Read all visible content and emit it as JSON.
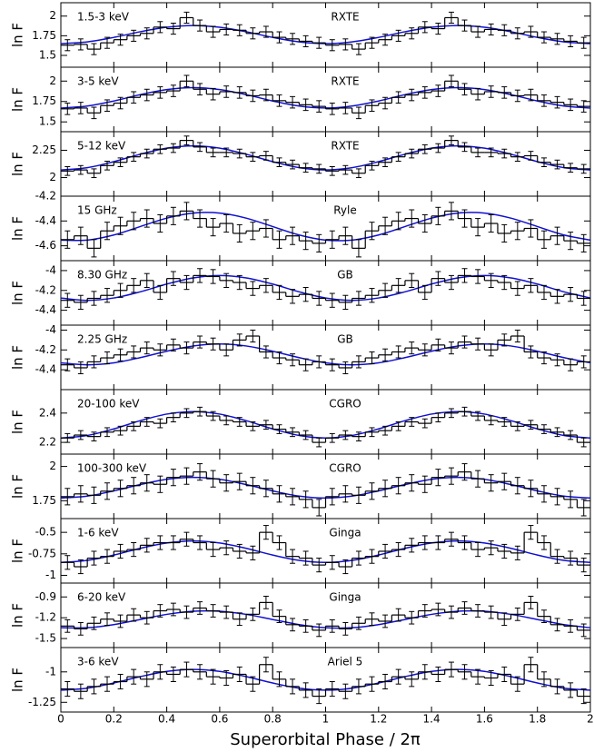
{
  "chart_data": {
    "type": "stacked-step",
    "xlabel": "Superorbital Phase / 2π",
    "xlim": [
      0,
      2
    ],
    "xticks": [
      0,
      0.2,
      0.4,
      0.6,
      0.8,
      1,
      1.2,
      1.4,
      1.6,
      1.8,
      2
    ],
    "bins": [
      0,
      0.05,
      0.1,
      0.15,
      0.2,
      0.25,
      0.3,
      0.35,
      0.4,
      0.45,
      0.5,
      0.55,
      0.6,
      0.65,
      0.7,
      0.75,
      0.8,
      0.85,
      0.9,
      0.95,
      1,
      1.05,
      1.1,
      1.15,
      1.2,
      1.25,
      1.3,
      1.35,
      1.4,
      1.45,
      1.5,
      1.55,
      1.6,
      1.65,
      1.7,
      1.75,
      1.8,
      1.85,
      1.9,
      1.95,
      2
    ],
    "fit_x": [
      0,
      0.1,
      0.2,
      0.3,
      0.4,
      0.5,
      0.6,
      0.7,
      0.8,
      0.9,
      1,
      1.1,
      1.2,
      1.3,
      1.4,
      1.5,
      1.6,
      1.7,
      1.8,
      1.9,
      2
    ],
    "data_color": "#000000",
    "fit_color": "#1010d0",
    "panels": [
      {
        "ylabel": "ln F",
        "label": "1.5-3 keV",
        "instrument": "RXTE",
        "ylim": [
          1.35,
          2.17
        ],
        "yticks": [
          1.5,
          1.75,
          2
        ],
        "error": 0.07,
        "values": [
          1.63,
          1.64,
          1.58,
          1.66,
          1.7,
          1.75,
          1.78,
          1.86,
          1.84,
          1.98,
          1.88,
          1.8,
          1.83,
          1.82,
          1.78,
          1.8,
          1.73,
          1.71,
          1.68,
          1.66,
          1.63,
          1.64,
          1.58,
          1.66,
          1.7,
          1.75,
          1.78,
          1.86,
          1.84,
          1.98,
          1.88,
          1.8,
          1.83,
          1.82,
          1.78,
          1.8,
          1.73,
          1.71,
          1.68,
          1.66
        ],
        "fit": [
          1.65,
          1.672,
          1.729,
          1.801,
          1.858,
          1.88,
          1.858,
          1.801,
          1.729,
          1.672,
          1.65,
          1.672,
          1.729,
          1.801,
          1.858,
          1.88,
          1.858,
          1.801,
          1.729,
          1.672,
          1.65
        ]
      },
      {
        "ylabel": "ln F",
        "label": "3-5 keV",
        "instrument": "RXTE",
        "ylim": [
          1.38,
          2.17
        ],
        "yticks": [
          1.5,
          1.75,
          2
        ],
        "error": 0.07,
        "values": [
          1.66,
          1.67,
          1.61,
          1.7,
          1.73,
          1.8,
          1.83,
          1.86,
          1.88,
          2.0,
          1.9,
          1.84,
          1.87,
          1.86,
          1.82,
          1.83,
          1.76,
          1.74,
          1.71,
          1.69,
          1.66,
          1.67,
          1.61,
          1.7,
          1.73,
          1.8,
          1.83,
          1.86,
          1.88,
          2.0,
          1.9,
          1.84,
          1.87,
          1.86,
          1.82,
          1.83,
          1.76,
          1.74,
          1.71,
          1.69
        ],
        "fit": [
          1.67,
          1.694,
          1.756,
          1.834,
          1.896,
          1.92,
          1.896,
          1.834,
          1.756,
          1.694,
          1.67,
          1.694,
          1.756,
          1.834,
          1.896,
          1.92,
          1.896,
          1.834,
          1.756,
          1.694,
          1.67
        ]
      },
      {
        "ylabel": "ln F",
        "label": "5-12 keV",
        "instrument": "RXTE",
        "ylim": [
          1.83,
          2.42
        ],
        "yticks": [
          2,
          2.25
        ],
        "error": 0.04,
        "values": [
          2.06,
          2.07,
          2.04,
          2.11,
          2.14,
          2.19,
          2.22,
          2.26,
          2.27,
          2.34,
          2.28,
          2.23,
          2.23,
          2.22,
          2.19,
          2.2,
          2.14,
          2.12,
          2.09,
          2.08,
          2.06,
          2.07,
          2.04,
          2.11,
          2.14,
          2.19,
          2.22,
          2.26,
          2.27,
          2.34,
          2.28,
          2.23,
          2.23,
          2.22,
          2.19,
          2.2,
          2.14,
          2.12,
          2.09,
          2.08
        ],
        "fit": [
          2.07,
          2.091,
          2.146,
          2.214,
          2.269,
          2.29,
          2.269,
          2.214,
          2.146,
          2.091,
          2.07,
          2.091,
          2.146,
          2.214,
          2.269,
          2.29,
          2.269,
          2.214,
          2.146,
          2.091,
          2.07
        ]
      },
      {
        "ylabel": "ln F",
        "label": "15 GHz",
        "instrument": "Ryle",
        "ylim": [
          -4.72,
          -4.2
        ],
        "yticks": [
          -4.6,
          -4.4,
          -4.2
        ],
        "error": 0.07,
        "values": [
          -4.55,
          -4.52,
          -4.62,
          -4.48,
          -4.44,
          -4.4,
          -4.38,
          -4.42,
          -4.36,
          -4.32,
          -4.38,
          -4.45,
          -4.42,
          -4.5,
          -4.48,
          -4.46,
          -4.55,
          -4.52,
          -4.56,
          -4.58,
          -4.55,
          -4.52,
          -4.62,
          -4.48,
          -4.44,
          -4.4,
          -4.38,
          -4.42,
          -4.36,
          -4.32,
          -4.38,
          -4.45,
          -4.42,
          -4.5,
          -4.48,
          -4.46,
          -4.55,
          -4.52,
          -4.56,
          -4.58
        ],
        "fit": [
          -4.554,
          -4.554,
          -4.513,
          -4.445,
          -4.377,
          -4.336,
          -4.336,
          -4.377,
          -4.445,
          -4.513,
          -4.554,
          -4.554,
          -4.513,
          -4.445,
          -4.377,
          -4.336,
          -4.336,
          -4.377,
          -4.445,
          -4.513,
          -4.554
        ]
      },
      {
        "ylabel": "ln F",
        "label": "8.30 GHz",
        "instrument": "GB",
        "ylim": [
          -4.55,
          -3.9
        ],
        "yticks": [
          -4.4,
          -4.2,
          -4
        ],
        "error": 0.07,
        "values": [
          -4.3,
          -4.32,
          -4.28,
          -4.25,
          -4.2,
          -4.15,
          -4.1,
          -4.22,
          -4.08,
          -4.12,
          -4.05,
          -4.06,
          -4.1,
          -4.12,
          -4.18,
          -4.15,
          -4.22,
          -4.26,
          -4.24,
          -4.28,
          -4.3,
          -4.32,
          -4.28,
          -4.25,
          -4.2,
          -4.15,
          -4.1,
          -4.22,
          -4.08,
          -4.12,
          -4.05,
          -4.06,
          -4.1,
          -4.12,
          -4.18,
          -4.15,
          -4.22,
          -4.26,
          -4.24,
          -4.28
        ],
        "fit": [
          -4.276,
          -4.3,
          -4.276,
          -4.214,
          -4.136,
          -4.074,
          -4.05,
          -4.074,
          -4.136,
          -4.214,
          -4.276,
          -4.3,
          -4.276,
          -4.214,
          -4.136,
          -4.074,
          -4.05,
          -4.074,
          -4.136,
          -4.214,
          -4.276
        ]
      },
      {
        "ylabel": "ln F",
        "label": "2.25 GHz",
        "instrument": "GB",
        "ylim": [
          -4.6,
          -3.95
        ],
        "yticks": [
          -4.4,
          -4.2,
          -4
        ],
        "error": 0.06,
        "values": [
          -4.35,
          -4.38,
          -4.32,
          -4.28,
          -4.25,
          -4.22,
          -4.18,
          -4.2,
          -4.15,
          -4.18,
          -4.12,
          -4.14,
          -4.2,
          -4.1,
          -4.06,
          -4.22,
          -4.28,
          -4.3,
          -4.35,
          -4.32,
          -4.35,
          -4.38,
          -4.32,
          -4.28,
          -4.25,
          -4.22,
          -4.18,
          -4.2,
          -4.15,
          -4.18,
          -4.12,
          -4.14,
          -4.2,
          -4.1,
          -4.06,
          -4.22,
          -4.28,
          -4.3,
          -4.35,
          -4.32
        ],
        "fit": [
          -4.33,
          -4.35,
          -4.33,
          -4.277,
          -4.213,
          -4.16,
          -4.14,
          -4.16,
          -4.213,
          -4.277,
          -4.33,
          -4.35,
          -4.33,
          -4.277,
          -4.213,
          -4.16,
          -4.14,
          -4.16,
          -4.213,
          -4.277,
          -4.33
        ]
      },
      {
        "ylabel": "ln F",
        "label": "20-100 keV",
        "instrument": "CGRO",
        "ylim": [
          2.12,
          2.56
        ],
        "yticks": [
          2.2,
          2.4
        ],
        "error": 0.03,
        "values": [
          2.23,
          2.25,
          2.24,
          2.27,
          2.28,
          2.31,
          2.34,
          2.33,
          2.37,
          2.4,
          2.41,
          2.38,
          2.35,
          2.34,
          2.31,
          2.32,
          2.29,
          2.27,
          2.25,
          2.2,
          2.23,
          2.25,
          2.24,
          2.27,
          2.28,
          2.31,
          2.34,
          2.33,
          2.37,
          2.4,
          2.41,
          2.38,
          2.35,
          2.34,
          2.31,
          2.32,
          2.29,
          2.27,
          2.25,
          2.2
        ],
        "fit": [
          2.23,
          2.247,
          2.292,
          2.348,
          2.393,
          2.41,
          2.393,
          2.348,
          2.292,
          2.247,
          2.23,
          2.247,
          2.292,
          2.348,
          2.393,
          2.41,
          2.393,
          2.348,
          2.292,
          2.247,
          2.23
        ]
      },
      {
        "ylabel": "ln F",
        "label": "100-300 keV",
        "instrument": "CGRO",
        "ylim": [
          1.62,
          2.09
        ],
        "yticks": [
          1.75,
          2
        ],
        "error": 0.06,
        "values": [
          1.78,
          1.8,
          1.79,
          1.82,
          1.84,
          1.86,
          1.88,
          1.87,
          1.92,
          1.93,
          1.96,
          1.91,
          1.88,
          1.89,
          1.86,
          1.84,
          1.8,
          1.78,
          1.76,
          1.7,
          1.78,
          1.8,
          1.79,
          1.82,
          1.84,
          1.86,
          1.88,
          1.87,
          1.92,
          1.93,
          1.96,
          1.91,
          1.88,
          1.89,
          1.86,
          1.84,
          1.8,
          1.78,
          1.76,
          1.7
        ],
        "fit": [
          1.77,
          1.784,
          1.822,
          1.868,
          1.906,
          1.92,
          1.906,
          1.868,
          1.822,
          1.784,
          1.77,
          1.784,
          1.822,
          1.868,
          1.906,
          1.92,
          1.906,
          1.868,
          1.822,
          1.784,
          1.77
        ]
      },
      {
        "ylabel": "ln F",
        "label": "1-6 keV",
        "instrument": "Ginga",
        "ylim": [
          -1.09,
          -0.34
        ],
        "yticks": [
          -1,
          -0.75,
          -0.5
        ],
        "error": 0.08,
        "values": [
          -0.85,
          -0.9,
          -0.8,
          -0.78,
          -0.72,
          -0.7,
          -0.65,
          -0.62,
          -0.62,
          -0.58,
          -0.62,
          -0.7,
          -0.68,
          -0.72,
          -0.74,
          -0.5,
          -0.62,
          -0.78,
          -0.8,
          -0.88,
          -0.85,
          -0.9,
          -0.8,
          -0.78,
          -0.72,
          -0.7,
          -0.65,
          -0.62,
          -0.62,
          -0.58,
          -0.62,
          -0.7,
          -0.68,
          -0.72,
          -0.74,
          -0.5,
          -0.62,
          -0.78,
          -0.8,
          -0.88
        ],
        "fit": [
          -0.85,
          -0.826,
          -0.764,
          -0.686,
          -0.624,
          -0.6,
          -0.624,
          -0.686,
          -0.764,
          -0.826,
          -0.85,
          -0.826,
          -0.764,
          -0.686,
          -0.624,
          -0.6,
          -0.624,
          -0.686,
          -0.764,
          -0.826,
          -0.85
        ]
      },
      {
        "ylabel": "ln F",
        "label": "6-20 keV",
        "instrument": "Ginga",
        "ylim": [
          -1.63,
          -0.7
        ],
        "yticks": [
          -1.5,
          -1.2,
          -0.9
        ],
        "error": 0.09,
        "values": [
          -1.32,
          -1.36,
          -1.28,
          -1.22,
          -1.25,
          -1.16,
          -1.2,
          -1.1,
          -1.08,
          -1.12,
          -1.06,
          -1.1,
          -1.12,
          -1.22,
          -1.15,
          -0.98,
          -1.18,
          -1.3,
          -1.32,
          -1.38,
          -1.32,
          -1.36,
          -1.28,
          -1.22,
          -1.25,
          -1.16,
          -1.2,
          -1.1,
          -1.08,
          -1.12,
          -1.06,
          -1.1,
          -1.12,
          -1.22,
          -1.15,
          -0.98,
          -1.18,
          -1.3,
          -1.32,
          -1.38
        ],
        "fit": [
          -1.344,
          -1.344,
          -1.299,
          -1.225,
          -1.151,
          -1.106,
          -1.106,
          -1.151,
          -1.225,
          -1.299,
          -1.344,
          -1.344,
          -1.299,
          -1.225,
          -1.151,
          -1.106,
          -1.106,
          -1.151,
          -1.225,
          -1.299,
          -1.344
        ]
      },
      {
        "ylabel": "ln F",
        "label": "3-6 keV",
        "instrument": "Ariel 5",
        "ylim": [
          -1.33,
          -0.8
        ],
        "yticks": [
          -1.25,
          -1
        ],
        "error": 0.06,
        "values": [
          -1.14,
          -1.16,
          -1.12,
          -1.1,
          -1.08,
          -1.04,
          -1.06,
          -1.0,
          -1.02,
          -0.98,
          -1.0,
          -1.04,
          -1.05,
          -1.02,
          -1.1,
          -0.94,
          -1.06,
          -1.12,
          -1.15,
          -1.2,
          -1.14,
          -1.16,
          -1.12,
          -1.1,
          -1.08,
          -1.04,
          -1.06,
          -1.0,
          -1.02,
          -0.98,
          -1.0,
          -1.04,
          -1.05,
          -1.02,
          -1.1,
          -0.94,
          -1.06,
          -1.12,
          -1.15,
          -1.2
        ],
        "fit": [
          -1.15,
          -1.134,
          -1.091,
          -1.039,
          -0.996,
          -0.98,
          -0.996,
          -1.039,
          -1.091,
          -1.134,
          -1.15,
          -1.134,
          -1.091,
          -1.039,
          -0.996,
          -0.98,
          -0.996,
          -1.039,
          -1.091,
          -1.134,
          -1.15
        ]
      }
    ]
  }
}
